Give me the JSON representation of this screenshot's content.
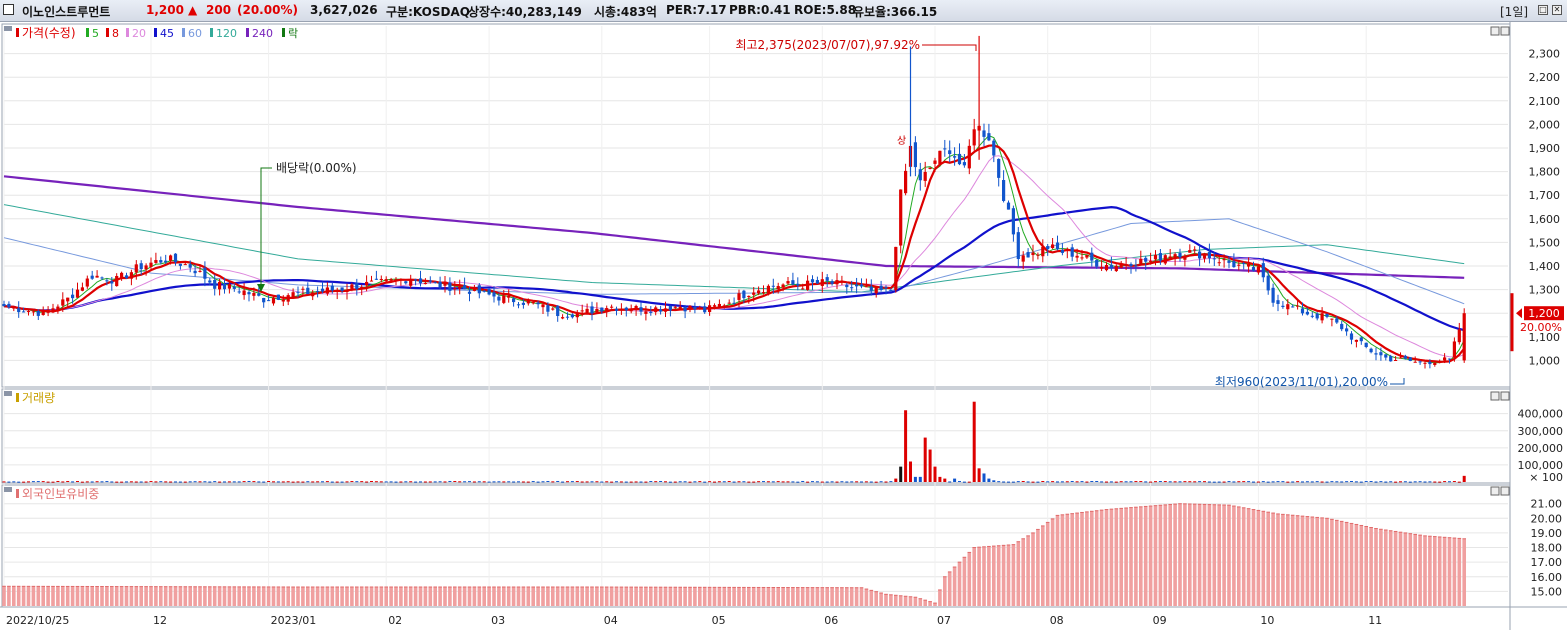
{
  "header": {
    "name": "이노인스트루먼트",
    "price": "1,200",
    "change_arrow": "▲",
    "change": "200",
    "change_pct": "(20.00%)",
    "volume": "3,627,026",
    "market": "구분:KOSDAQ",
    "shares": "상장수:40,283,149",
    "mktcap": "시총:483억",
    "per": "PER:7.17",
    "pbr": "PBR:0.41",
    "roe": "ROE:5.88",
    "reserve": "유보율:366.15",
    "period": "[1일]",
    "buttons": [
      "□",
      "✕"
    ]
  },
  "legend": {
    "price_label": "가격(수정)",
    "ma_items": [
      {
        "label": "5",
        "color": "#22aa22"
      },
      {
        "label": "8",
        "color": "#dd0000"
      },
      {
        "label": "20",
        "color": "#dd88dd"
      },
      {
        "label": "45",
        "color": "#1111cc"
      },
      {
        "label": "60",
        "color": "#7799dd"
      },
      {
        "label": "120",
        "color": "#33aa99"
      },
      {
        "label": "240",
        "color": "#7722bb"
      },
      {
        "label": "락",
        "color": "#117711"
      }
    ],
    "volume_label": "거래량",
    "foreign_label": "외국인보유비중"
  },
  "colors": {
    "up": "#dd0000",
    "down": "#1155cc",
    "ma5": "#22aa22",
    "ma8": "#dd0000",
    "ma20": "#dd88dd",
    "ma45": "#1111cc",
    "ma60": "#7799dd",
    "ma120": "#33aa99",
    "ma240": "#7722bb",
    "foreign_bar": "#f0a0a0",
    "foreign_bar_edge": "#e06a6a",
    "grid": "#e6e6e6",
    "annotation_high": "#cc0000",
    "annotation_low": "#1155aa",
    "annotation_dividend": "#117711"
  },
  "chart_data": [
    {
      "type": "line",
      "panel": "price",
      "ylim": [
        900,
        2400
      ],
      "y_ticks": [
        "2,300",
        "2,200",
        "2,100",
        "2,000",
        "1,900",
        "1,800",
        "1,700",
        "1,600",
        "1,500",
        "1,400",
        "1,300",
        "1,200",
        "1,100",
        "1,000"
      ],
      "y_tick_values": [
        2300,
        2200,
        2100,
        2000,
        1900,
        1800,
        1700,
        1600,
        1500,
        1400,
        1300,
        1200,
        1100,
        1000
      ],
      "x_labels": [
        "2022/10/25",
        "12",
        "2023/01",
        "02",
        "03",
        "04",
        "05",
        "06",
        "07",
        "08",
        "09",
        "10",
        "11"
      ],
      "candles_desc": "daily candles, 2022-10-25 to 2023-11-16",
      "close_anchors": [
        [
          0,
          1230
        ],
        [
          8,
          1200
        ],
        [
          13,
          1260
        ],
        [
          18,
          1360
        ],
        [
          23,
          1340
        ],
        [
          28,
          1400
        ],
        [
          33,
          1430
        ],
        [
          38,
          1400
        ],
        [
          43,
          1320
        ],
        [
          48,
          1300
        ],
        [
          53,
          1260
        ],
        [
          58,
          1280
        ],
        [
          63,
          1290
        ],
        [
          68,
          1300
        ],
        [
          73,
          1320
        ],
        [
          78,
          1330
        ],
        [
          83,
          1350
        ],
        [
          88,
          1320
        ],
        [
          93,
          1310
        ],
        [
          98,
          1280
        ],
        [
          103,
          1260
        ],
        [
          108,
          1240
        ],
        [
          113,
          1200
        ],
        [
          118,
          1200
        ],
        [
          123,
          1230
        ],
        [
          128,
          1220
        ],
        [
          133,
          1220
        ],
        [
          138,
          1230
        ],
        [
          143,
          1210
        ],
        [
          148,
          1250
        ],
        [
          153,
          1300
        ],
        [
          158,
          1320
        ],
        [
          163,
          1320
        ],
        [
          168,
          1330
        ],
        [
          173,
          1310
        ],
        [
          178,
          1290
        ],
        [
          181,
          1300
        ],
        [
          183,
          1700
        ],
        [
          185,
          1900
        ],
        [
          187,
          1750
        ],
        [
          190,
          1850
        ],
        [
          193,
          1900
        ],
        [
          196,
          1800
        ],
        [
          198,
          2000
        ],
        [
          201,
          1950
        ],
        [
          204,
          1700
        ],
        [
          207,
          1450
        ],
        [
          210,
          1450
        ],
        [
          213,
          1480
        ],
        [
          216,
          1460
        ],
        [
          219,
          1450
        ],
        [
          222,
          1420
        ],
        [
          226,
          1400
        ],
        [
          230,
          1420
        ],
        [
          234,
          1420
        ],
        [
          237,
          1450
        ],
        [
          241,
          1460
        ],
        [
          245,
          1450
        ],
        [
          249,
          1420
        ],
        [
          252,
          1400
        ],
        [
          256,
          1380
        ],
        [
          259,
          1260
        ],
        [
          262,
          1230
        ],
        [
          266,
          1200
        ],
        [
          270,
          1180
        ],
        [
          273,
          1140
        ],
        [
          276,
          1080
        ],
        [
          279,
          1040
        ],
        [
          282,
          1010
        ],
        [
          286,
          1000
        ],
        [
          289,
          990
        ],
        [
          292,
          1000
        ],
        [
          295,
          1000
        ],
        [
          298,
          1200
        ]
      ],
      "ma240_anchors": [
        [
          0,
          1780
        ],
        [
          60,
          1650
        ],
        [
          120,
          1540
        ],
        [
          180,
          1400
        ],
        [
          240,
          1390
        ],
        [
          298,
          1350
        ]
      ],
      "ma120_anchors": [
        [
          0,
          1660
        ],
        [
          60,
          1430
        ],
        [
          120,
          1330
        ],
        [
          175,
          1290
        ],
        [
          215,
          1400
        ],
        [
          245,
          1470
        ],
        [
          270,
          1490
        ],
        [
          298,
          1410
        ]
      ],
      "ma60_anchors": [
        [
          0,
          1520
        ],
        [
          30,
          1370
        ],
        [
          60,
          1320
        ],
        [
          120,
          1280
        ],
        [
          180,
          1290
        ],
        [
          200,
          1400
        ],
        [
          230,
          1580
        ],
        [
          250,
          1600
        ],
        [
          270,
          1460
        ],
        [
          298,
          1240
        ]
      ],
      "annotations": [
        {
          "text": "최고2,375(2023/07/07),97.92%",
          "x_index": 199,
          "y": 2375
        },
        {
          "text": "배당락(0.00%)",
          "x_index": 54,
          "y": 1820
        },
        {
          "text": "최저960(2023/11/01),20.00%",
          "x_index": 288,
          "y": 960
        },
        {
          "text": "상",
          "x_index": 184,
          "y": 1950
        }
      ],
      "last_price_label": "1,200",
      "last_pct_label": "20.00%"
    },
    {
      "type": "bar",
      "panel": "volume",
      "ylim": [
        0,
        480000
      ],
      "y_ticks": [
        "400,000",
        "300,000",
        "200,000",
        "100,000",
        "× 100"
      ],
      "y_tick_values": [
        400000,
        300000,
        200000,
        100000,
        0
      ],
      "spikes": [
        [
          182,
          20000
        ],
        [
          183,
          90000
        ],
        [
          184,
          420000
        ],
        [
          185,
          120000
        ],
        [
          186,
          30000
        ],
        [
          187,
          30000
        ],
        [
          188,
          260000
        ],
        [
          189,
          190000
        ],
        [
          190,
          90000
        ],
        [
          191,
          30000
        ],
        [
          192,
          20000
        ],
        [
          194,
          20000
        ],
        [
          198,
          470000
        ],
        [
          199,
          80000
        ],
        [
          200,
          50000
        ],
        [
          201,
          20000
        ],
        [
          202,
          10000
        ],
        [
          298,
          36000
        ]
      ]
    },
    {
      "type": "bar",
      "panel": "foreign",
      "ylim": [
        14.0,
        21.8
      ],
      "y_ticks": [
        "21.00",
        "20.00",
        "19.00",
        "18.00",
        "17.00",
        "16.00",
        "15.00"
      ],
      "y_tick_values": [
        21,
        20,
        19,
        18,
        17,
        16,
        15
      ],
      "anchors": [
        [
          0,
          15.35
        ],
        [
          60,
          15.3
        ],
        [
          120,
          15.3
        ],
        [
          175,
          15.25
        ],
        [
          180,
          14.8
        ],
        [
          186,
          14.6
        ],
        [
          190,
          14.2
        ],
        [
          192,
          16.0
        ],
        [
          195,
          17.0
        ],
        [
          198,
          18.0
        ],
        [
          206,
          18.2
        ],
        [
          210,
          19.0
        ],
        [
          215,
          20.2
        ],
        [
          225,
          20.6
        ],
        [
          240,
          21.0
        ],
        [
          250,
          20.9
        ],
        [
          260,
          20.3
        ],
        [
          270,
          20.0
        ],
        [
          280,
          19.3
        ],
        [
          290,
          18.8
        ],
        [
          298,
          18.6
        ]
      ]
    }
  ]
}
